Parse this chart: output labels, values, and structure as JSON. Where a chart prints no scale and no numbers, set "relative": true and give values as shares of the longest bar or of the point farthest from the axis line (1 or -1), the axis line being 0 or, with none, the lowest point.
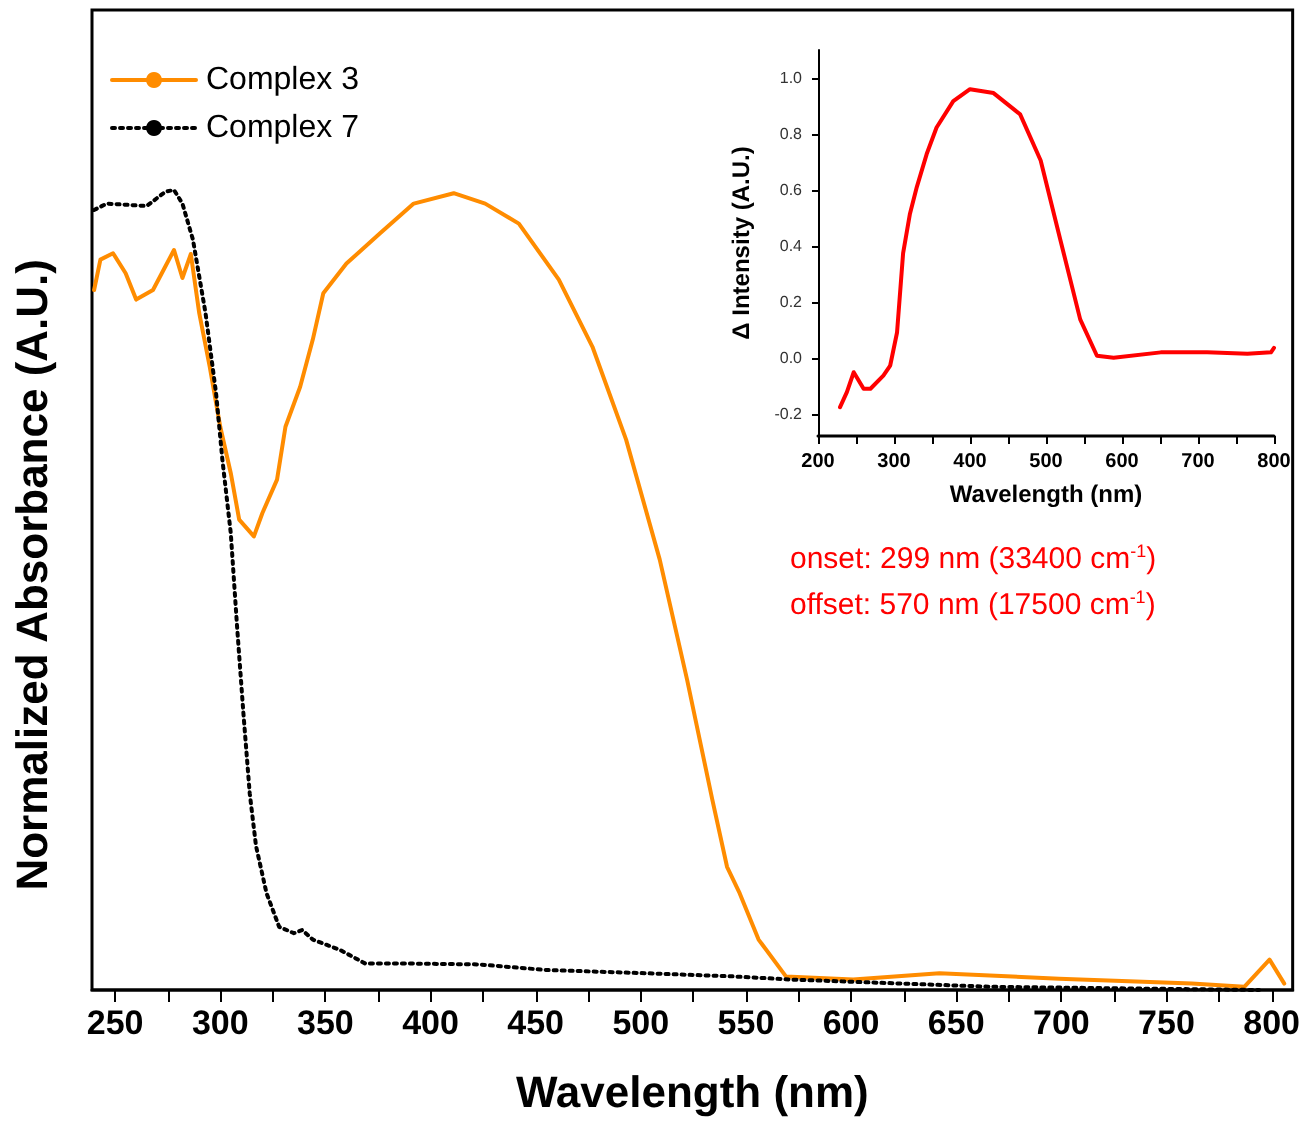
{
  "chart_data": [
    {
      "type": "line",
      "xlabel": "Wavelength (nm)",
      "ylabel": "Normalized Absorbance (A.U.)",
      "relative": true,
      "legend": "top left",
      "marker": "none",
      "xlim": [
        239,
        810
      ],
      "xticks": [
        250,
        {
          "value": 275,
          "label": null
        },
        300,
        {
          "value": 325,
          "label": null
        },
        350,
        {
          "value": 375,
          "label": null
        },
        400,
        {
          "value": 425,
          "label": null
        },
        450,
        {
          "value": 475,
          "label": null
        },
        500,
        {
          "value": 525,
          "label": null
        },
        550,
        {
          "value": 575,
          "label": null
        },
        600,
        {
          "value": 625,
          "label": null
        },
        650,
        {
          "value": 675,
          "label": null
        },
        700,
        {
          "value": 725,
          "label": null
        },
        750,
        {
          "value": 775,
          "label": null
        },
        800
      ],
      "annotations": [
        "onset: 299 nm (33400 cm$^{-1}$)",
        "offset: 570 nm (17500 cm$^{-1}$)"
      ],
      "series": [
        {
          "name": "Complex 3",
          "color": "#ff8c00",
          "line_style": "solid",
          "x": [
            240,
            243,
            249,
            255,
            260,
            268,
            273,
            278,
            282,
            286,
            290,
            295,
            300,
            305,
            309,
            316,
            320,
            327,
            331,
            338,
            344,
            349,
            360,
            376,
            392,
            411,
            426,
            442,
            461,
            477,
            493,
            509,
            522,
            534,
            541,
            547,
            556,
            569,
            601,
            642,
            699,
            762,
            787,
            799,
            806
          ],
          "values": [
            0.875,
            0.913,
            0.921,
            0.896,
            0.863,
            0.875,
            0.9,
            0.925,
            0.89,
            0.92,
            0.846,
            0.779,
            0.704,
            0.646,
            0.588,
            0.567,
            0.596,
            0.638,
            0.704,
            0.754,
            0.813,
            0.871,
            0.908,
            0.946,
            0.983,
            0.996,
            0.983,
            0.958,
            0.888,
            0.804,
            0.688,
            0.538,
            0.388,
            0.238,
            0.154,
            0.121,
            0.063,
            0.017,
            0.013,
            0.021,
            0.014,
            0.008,
            0.004,
            0.038,
            0.008
          ]
        },
        {
          "name": "Complex 7",
          "color": "#000000",
          "line_style": "dotted",
          "x": [
            240,
            246,
            265,
            274,
            278,
            282,
            287,
            293,
            298,
            301,
            305,
            308,
            311,
            314,
            317,
            322,
            328,
            335,
            339,
            344,
            357,
            369,
            392,
            423,
            455,
            502,
            544,
            572,
            667,
            794
          ],
          "values": [
            0.975,
            0.983,
            0.98,
            0.998,
            1.0,
            0.983,
            0.938,
            0.846,
            0.746,
            0.663,
            0.571,
            0.454,
            0.346,
            0.246,
            0.18,
            0.121,
            0.079,
            0.071,
            0.075,
            0.063,
            0.05,
            0.033,
            0.033,
            0.032,
            0.025,
            0.021,
            0.017,
            0.013,
            0.004,
            0
          ]
        }
      ]
    },
    {
      "type": "line",
      "xlabel": "Wavelength (nm)",
      "ylabel": "Δ Intensity (A.U.)",
      "marker": "none",
      "xlim": [
        200,
        800
      ],
      "ylim": [
        -0.28,
        1.1
      ],
      "xticks": [
        200,
        {
          "value": 250,
          "label": null
        },
        300,
        {
          "value": 350,
          "label": null
        },
        400,
        {
          "value": 450,
          "label": null
        },
        500,
        {
          "value": 550,
          "label": null
        },
        600,
        {
          "value": 650,
          "label": null
        },
        700,
        {
          "value": 750,
          "label": null
        },
        800
      ],
      "yticks": [
        {
          "value": -0.2,
          "label": "-0.2"
        },
        {
          "value": 0,
          "label": "0.0"
        },
        {
          "value": 0.2,
          "label": "0.2"
        },
        {
          "value": 0.4,
          "label": "0.4"
        },
        {
          "value": 0.6,
          "label": "0.6"
        },
        {
          "value": 0.8,
          "label": "0.8"
        },
        {
          "value": 1,
          "label": "1.0"
        }
      ],
      "series": [
        {
          "color": "#ff0000",
          "line_style": "solid",
          "x": [
            229,
            238,
            247,
            260,
            269,
            286,
            295,
            304,
            312,
            321,
            330,
            343,
            356,
            378,
            400,
            431,
            466,
            493,
            519,
            545,
            567,
            589,
            651,
            712,
            765,
            796,
            800
          ],
          "values": [
            -0.177,
            -0.123,
            -0.052,
            -0.111,
            -0.111,
            -0.064,
            -0.028,
            0.09,
            0.374,
            0.515,
            0.61,
            0.728,
            0.823,
            0.917,
            0.96,
            0.946,
            0.87,
            0.705,
            0.42,
            0.137,
            0.007,
            0,
            0.019,
            0.019,
            0.014,
            0.019,
            0.035
          ]
        }
      ]
    }
  ]
}
